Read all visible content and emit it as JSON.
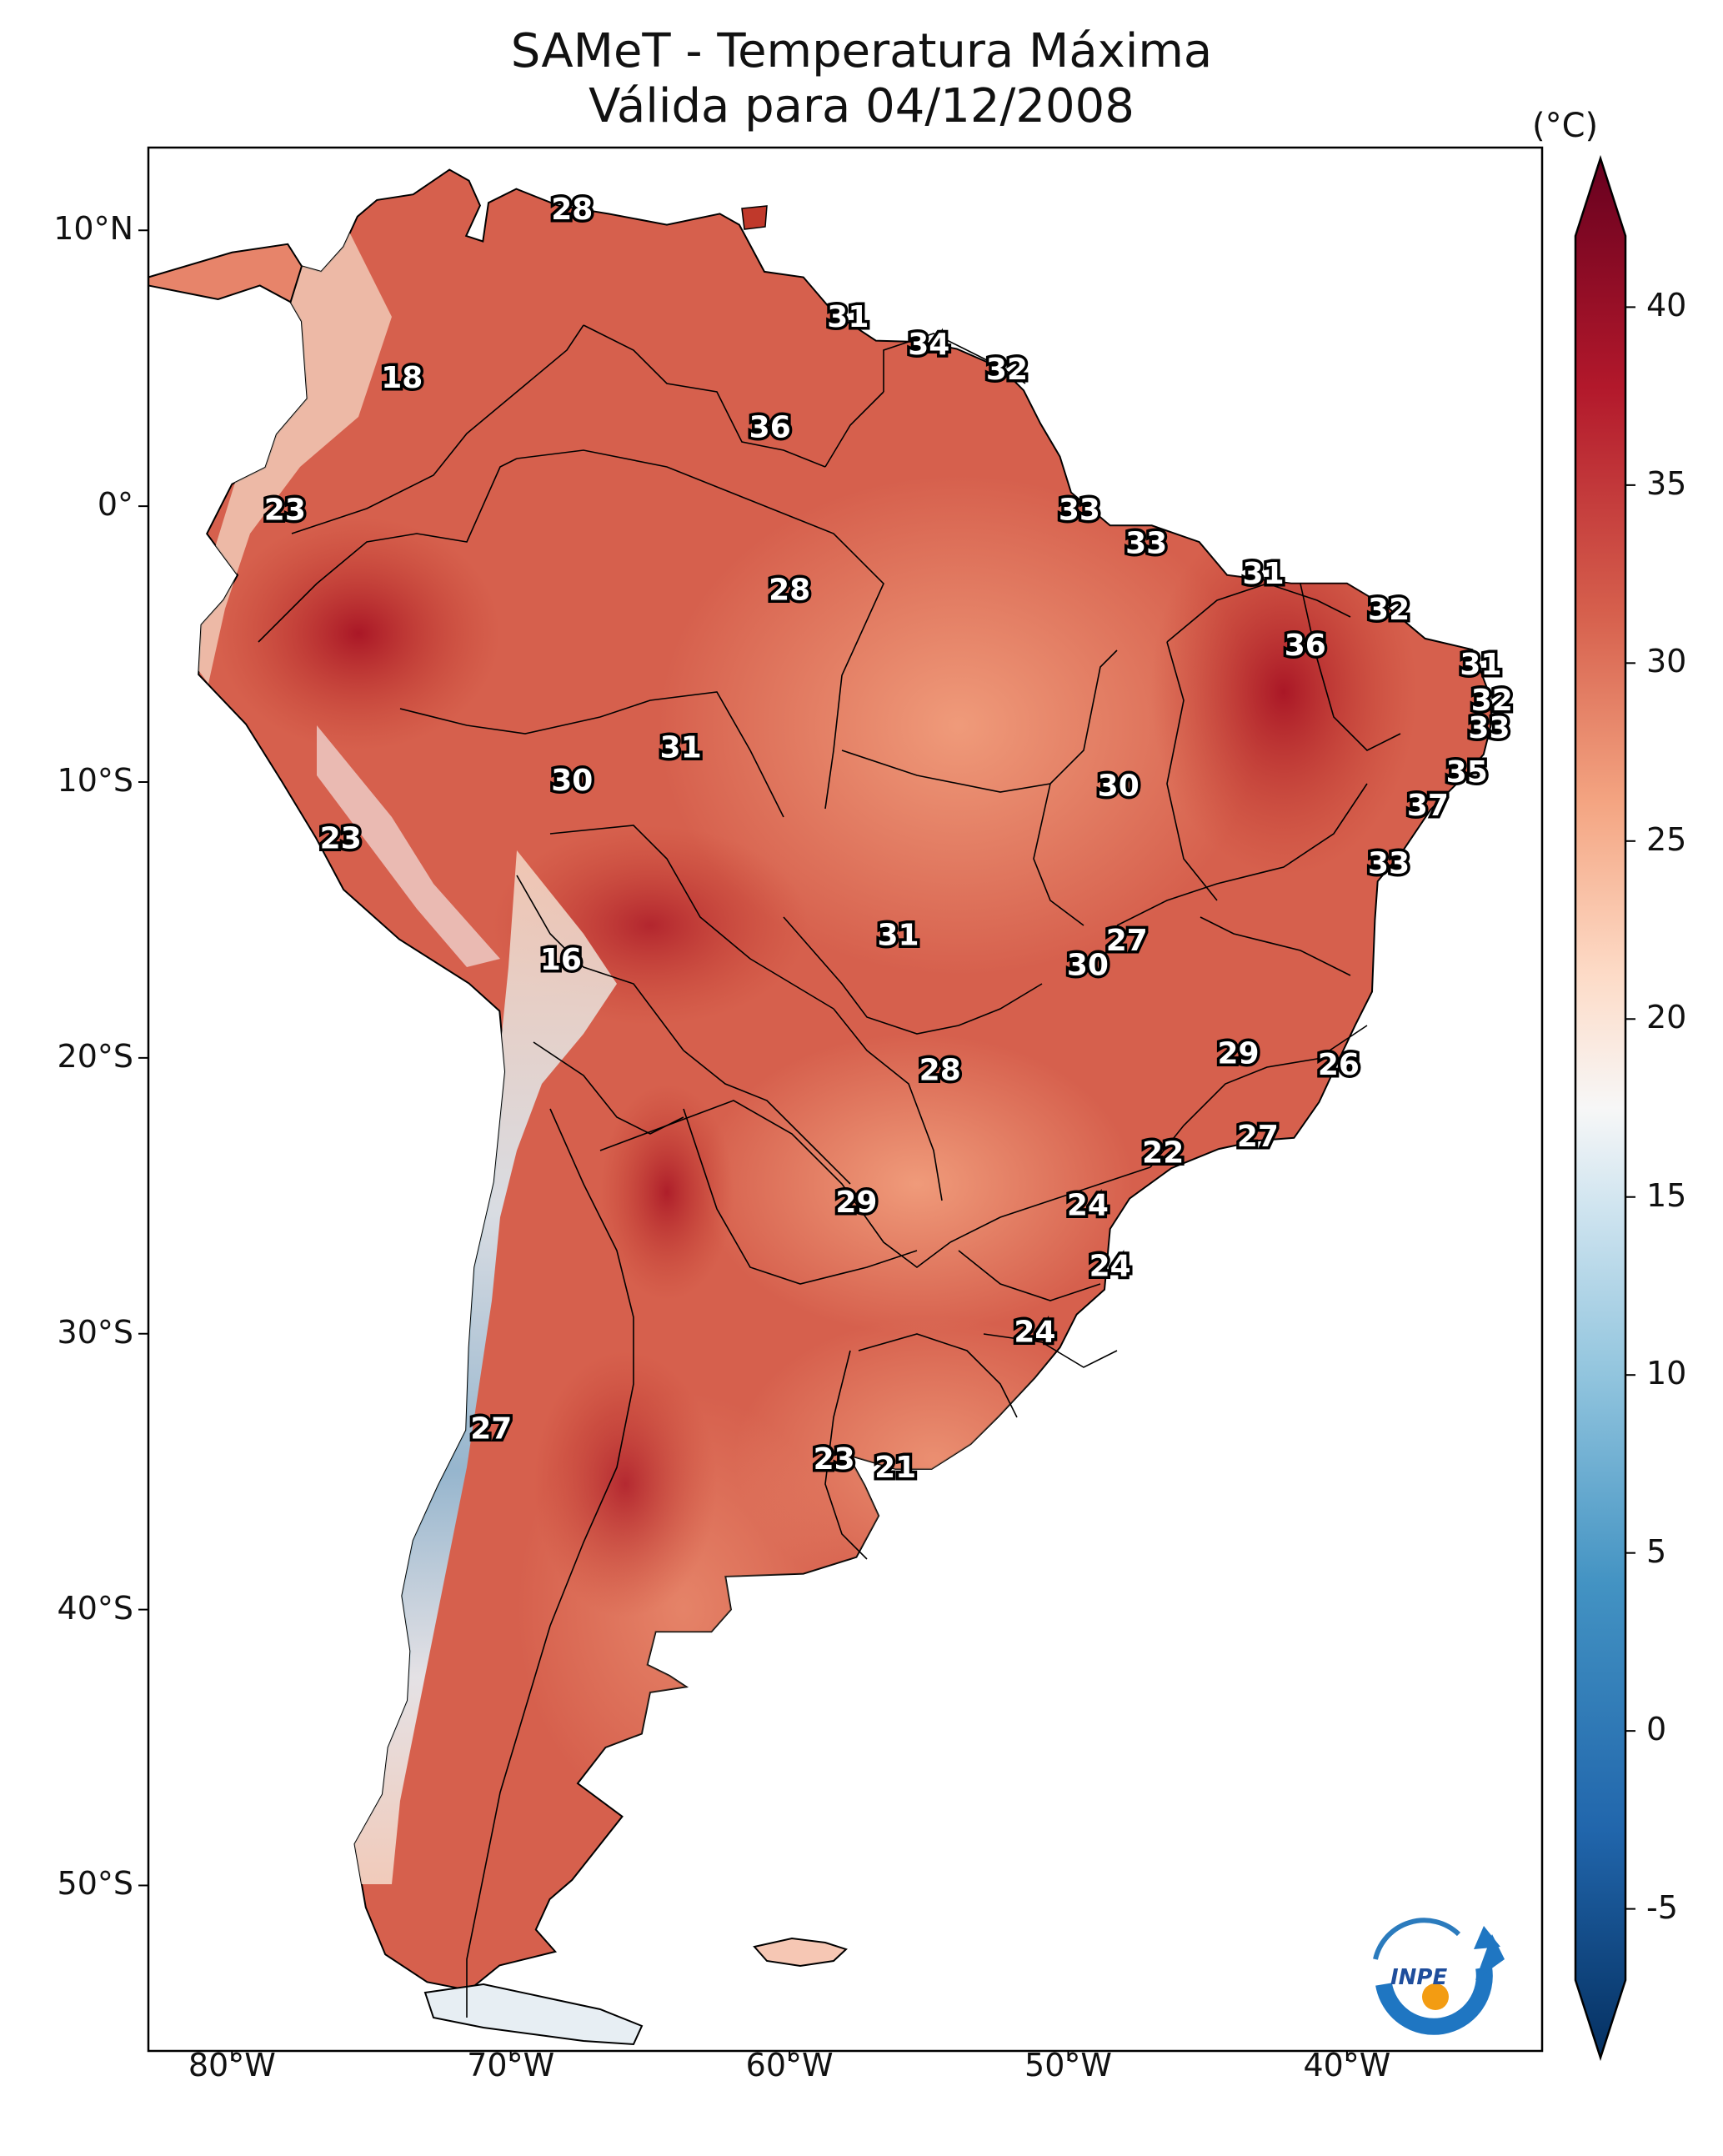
{
  "title": {
    "line1": "SAMeT - Temperatura Máxima",
    "line2": "Válida para 04/12/2008"
  },
  "colorbar": {
    "unit": "(°C)",
    "ticks": [
      "40",
      "35",
      "30",
      "25",
      "20",
      "15",
      "10",
      "5",
      "0",
      "-5"
    ],
    "min": -7,
    "max": 42,
    "colormap": "RdBu_r",
    "colors": {
      "low": "#053061",
      "mid": "#f7f7f7",
      "high": "#67001f"
    }
  },
  "axes": {
    "lat_labels": [
      "10°N",
      "0°",
      "10°S",
      "20°S",
      "30°S",
      "40°S",
      "50°S"
    ],
    "lon_labels": [
      "80°W",
      "70°W",
      "60°W",
      "50°W",
      "40°W"
    ],
    "lat_range": [
      -56,
      13
    ],
    "lon_range": [
      -83,
      -33
    ]
  },
  "logo": {
    "text": "INPE"
  },
  "stations": [
    {
      "label": "28",
      "lon": -67.8,
      "lat": 10.7
    },
    {
      "label": "31",
      "lon": -57.9,
      "lat": 6.8
    },
    {
      "label": "34",
      "lon": -55.0,
      "lat": 5.8
    },
    {
      "label": "32",
      "lon": -52.2,
      "lat": 4.9
    },
    {
      "label": "18",
      "lon": -73.9,
      "lat": 4.6
    },
    {
      "label": "36",
      "lon": -60.7,
      "lat": 2.8
    },
    {
      "label": "23",
      "lon": -78.1,
      "lat": -0.2
    },
    {
      "label": "33",
      "lon": -49.6,
      "lat": -0.2
    },
    {
      "label": "33",
      "lon": -47.2,
      "lat": -1.4
    },
    {
      "label": "31",
      "lon": -43.0,
      "lat": -2.5
    },
    {
      "label": "28",
      "lon": -60.0,
      "lat": -3.1
    },
    {
      "label": "32",
      "lon": -38.5,
      "lat": -3.8
    },
    {
      "label": "36",
      "lon": -41.5,
      "lat": -5.1
    },
    {
      "label": "31",
      "lon": -35.2,
      "lat": -5.8
    },
    {
      "label": "32",
      "lon": -34.8,
      "lat": -7.1
    },
    {
      "label": "33",
      "lon": -34.9,
      "lat": -8.1
    },
    {
      "label": "31",
      "lon": -63.9,
      "lat": -8.8
    },
    {
      "label": "30",
      "lon": -67.8,
      "lat": -10.0
    },
    {
      "label": "35",
      "lon": -35.7,
      "lat": -9.7
    },
    {
      "label": "30",
      "lon": -48.2,
      "lat": -10.2
    },
    {
      "label": "37",
      "lon": -37.1,
      "lat": -10.9
    },
    {
      "label": "23",
      "lon": -76.1,
      "lat": -12.1
    },
    {
      "label": "33",
      "lon": -38.5,
      "lat": -13.0
    },
    {
      "label": "31",
      "lon": -56.1,
      "lat": -15.6
    },
    {
      "label": "27",
      "lon": -47.9,
      "lat": -15.8
    },
    {
      "label": "16",
      "lon": -68.2,
      "lat": -16.5
    },
    {
      "label": "30",
      "lon": -49.3,
      "lat": -16.7
    },
    {
      "label": "29",
      "lon": -43.9,
      "lat": -19.9
    },
    {
      "label": "26",
      "lon": -40.3,
      "lat": -20.3
    },
    {
      "label": "28",
      "lon": -54.6,
      "lat": -20.5
    },
    {
      "label": "27",
      "lon": -43.2,
      "lat": -22.9
    },
    {
      "label": "22",
      "lon": -46.6,
      "lat": -23.5
    },
    {
      "label": "29",
      "lon": -57.6,
      "lat": -25.3
    },
    {
      "label": "24",
      "lon": -49.3,
      "lat": -25.4
    },
    {
      "label": "24",
      "lon": -48.5,
      "lat": -27.6
    },
    {
      "label": "24",
      "lon": -51.2,
      "lat": -30.0
    },
    {
      "label": "27",
      "lon": -70.7,
      "lat": -33.5
    },
    {
      "label": "23",
      "lon": -58.4,
      "lat": -34.6
    },
    {
      "label": "21",
      "lon": -56.2,
      "lat": -34.9
    }
  ]
}
